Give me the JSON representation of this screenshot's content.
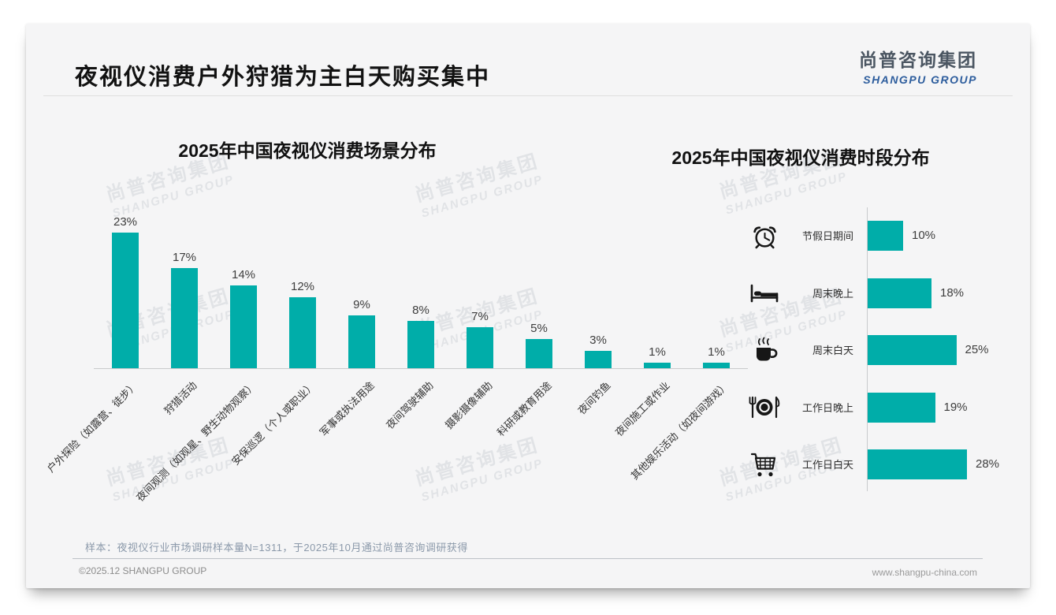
{
  "header": {
    "title": "夜视仪消费户外狩猎为主白天购买集中",
    "logo_cn": "尚普咨询集团",
    "logo_en": "SHANGPU GROUP"
  },
  "watermark": {
    "cn": "尚普咨询集团",
    "en": "SHANGPU GROUP"
  },
  "chart_data": [
    {
      "type": "bar",
      "orientation": "vertical",
      "title": "2025年中国夜视仪消费场景分布",
      "unit": "%",
      "categories": [
        "户外探险（如露营、徒步）",
        "狩猎活动",
        "夜间观测（如观星、野生动物观察）",
        "安保巡逻（个人或职业）",
        "军事或执法用途",
        "夜间驾驶辅助",
        "摄影摄像辅助",
        "科研或教育用途",
        "夜间钓鱼",
        "夜间施工或作业",
        "其他娱乐活动（如夜间游戏）"
      ],
      "values": [
        23,
        17,
        14,
        12,
        9,
        8,
        7,
        5,
        3,
        1,
        1
      ],
      "bar_color": "#00ADA9",
      "ylim": [
        0,
        25
      ],
      "grid": false,
      "legend": "none",
      "data_labels": "above-bars"
    },
    {
      "type": "bar",
      "orientation": "horizontal",
      "title": "2025年中国夜视仪消费时段分布",
      "unit": "%",
      "categories": [
        "节假日期间",
        "周末晚上",
        "周末白天",
        "工作日晚上",
        "工作日白天"
      ],
      "icons": [
        "alarm-clock",
        "bed",
        "coffee-cup",
        "dining-plate",
        "shopping-cart"
      ],
      "values": [
        10,
        18,
        25,
        19,
        28
      ],
      "bar_color": "#00ADA9",
      "xlim": [
        0,
        30
      ],
      "grid": false,
      "legend": "none",
      "data_labels": "right-of-bars"
    }
  ],
  "footnote": "样本：夜视仪行业市场调研样本量N=1311，于2025年10月通过尚普咨询调研获得",
  "footer": {
    "left": "©2025.12 SHANGPU GROUP",
    "right": "www.shangpu-china.com"
  },
  "colors": {
    "accent": "#00ADA9",
    "logo_blue": "#2d5d9d",
    "card_bg": "#f5f5f6",
    "watermark": "#e1e3e6"
  }
}
